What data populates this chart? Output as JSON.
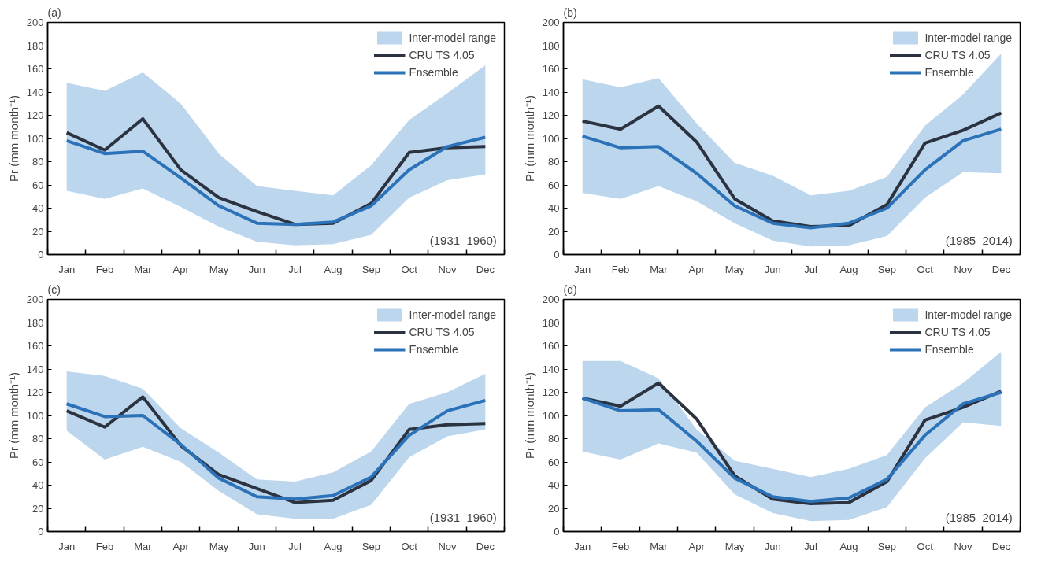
{
  "chart_data": [
    {
      "type": "line",
      "title": "(a)",
      "ylabel": "Pr (mm month⁻¹)",
      "categories": [
        "Jan",
        "Feb",
        "Mar",
        "Apr",
        "May",
        "Jun",
        "Jul",
        "Aug",
        "Sep",
        "Oct",
        "Nov",
        "Dec"
      ],
      "ylim": [
        0,
        200
      ],
      "yticks": [
        0,
        20,
        40,
        60,
        80,
        100,
        120,
        140,
        160,
        180,
        200
      ],
      "grid": false,
      "legend": "top right",
      "annotations": [
        "(1931–1960)"
      ],
      "series": [
        {
          "type": "area",
          "name": "Inter-model range",
          "color": "#bcd6ee",
          "values": [
            null,
            null,
            null,
            null,
            null,
            null,
            null,
            null,
            null,
            null,
            null,
            null
          ]
        },
        {
          "type": "line",
          "name": "CRU TS 4.05",
          "color": "#2c3340",
          "values": [
            105,
            90,
            117,
            73,
            49,
            37,
            26,
            27,
            44,
            88,
            92,
            93
          ]
        },
        {
          "type": "line",
          "name": "Ensemble",
          "color": "#2b72b8",
          "values": [
            98,
            87,
            89,
            66,
            42,
            27,
            26,
            28,
            42,
            73,
            93,
            101
          ],
          "lower": [
            55,
            48,
            57,
            41,
            24,
            11,
            8,
            9,
            17,
            49,
            64,
            69
          ],
          "upper": [
            148,
            141,
            157,
            130,
            87,
            59,
            55,
            51,
            77,
            116,
            139,
            163
          ]
        }
      ]
    },
    {
      "type": "line",
      "title": "(b)",
      "ylabel": "Pr (mm month⁻¹)",
      "categories": [
        "Jan",
        "Feb",
        "Mar",
        "Apr",
        "May",
        "Jun",
        "Jul",
        "Aug",
        "Sep",
        "Oct",
        "Nov",
        "Dec"
      ],
      "ylim": [
        0,
        200
      ],
      "yticks": [
        0,
        20,
        40,
        60,
        80,
        100,
        120,
        140,
        160,
        180,
        200
      ],
      "grid": false,
      "legend": "top right",
      "annotations": [
        "(1985–2014)"
      ],
      "series": [
        {
          "type": "area",
          "name": "Inter-model range",
          "color": "#bcd6ee",
          "values": [
            null,
            null,
            null,
            null,
            null,
            null,
            null,
            null,
            null,
            null,
            null,
            null
          ]
        },
        {
          "type": "line",
          "name": "CRU TS 4.05",
          "color": "#2c3340",
          "values": [
            115,
            108,
            128,
            97,
            48,
            29,
            24,
            25,
            43,
            96,
            107,
            122
          ]
        },
        {
          "type": "line",
          "name": "Ensemble",
          "color": "#2b72b8",
          "values": [
            102,
            92,
            93,
            70,
            42,
            27,
            23,
            27,
            40,
            73,
            98,
            108
          ],
          "lower": [
            53,
            48,
            59,
            46,
            27,
            12,
            7,
            8,
            16,
            49,
            71,
            70
          ],
          "upper": [
            151,
            144,
            152,
            113,
            79,
            68,
            51,
            55,
            67,
            111,
            138,
            173
          ]
        }
      ]
    },
    {
      "type": "line",
      "title": "(c)",
      "ylabel": "Pr (mm month⁻¹)",
      "categories": [
        "Jan",
        "Feb",
        "Mar",
        "Apr",
        "May",
        "Jun",
        "Jul",
        "Aug",
        "Sep",
        "Oct",
        "Nov",
        "Dec"
      ],
      "ylim": [
        0,
        200
      ],
      "yticks": [
        0,
        20,
        40,
        60,
        80,
        100,
        120,
        140,
        160,
        180,
        200
      ],
      "grid": false,
      "legend": "top right",
      "annotations": [
        "(1931–1960)"
      ],
      "series": [
        {
          "type": "area",
          "name": "Inter-model range",
          "color": "#bcd6ee",
          "values": [
            null,
            null,
            null,
            null,
            null,
            null,
            null,
            null,
            null,
            null,
            null,
            null
          ]
        },
        {
          "type": "line",
          "name": "CRU TS 4.05",
          "color": "#2c3340",
          "values": [
            104,
            90,
            116,
            74,
            49,
            37,
            25,
            27,
            44,
            88,
            92,
            93
          ]
        },
        {
          "type": "line",
          "name": "Ensemble",
          "color": "#2b72b8",
          "values": [
            110,
            99,
            100,
            75,
            46,
            30,
            28,
            31,
            47,
            83,
            104,
            113
          ],
          "lower": [
            87,
            62,
            73,
            60,
            35,
            15,
            11,
            11,
            23,
            64,
            82,
            88
          ],
          "upper": [
            138,
            134,
            123,
            89,
            68,
            45,
            43,
            51,
            69,
            110,
            120,
            136
          ]
        }
      ]
    },
    {
      "type": "line",
      "title": "(d)",
      "ylabel": "Pr (mm month⁻¹)",
      "categories": [
        "Jan",
        "Feb",
        "Mar",
        "Apr",
        "May",
        "Jun",
        "Jul",
        "Aug",
        "Sep",
        "Oct",
        "Nov",
        "Dec"
      ],
      "ylim": [
        0,
        200
      ],
      "yticks": [
        0,
        20,
        40,
        60,
        80,
        100,
        120,
        140,
        160,
        180,
        200
      ],
      "grid": false,
      "legend": "top right",
      "annotations": [
        "(1985–2014)"
      ],
      "series": [
        {
          "type": "area",
          "name": "Inter-model range",
          "color": "#bcd6ee",
          "values": [
            null,
            null,
            null,
            null,
            null,
            null,
            null,
            null,
            null,
            null,
            null,
            null
          ]
        },
        {
          "type": "line",
          "name": "CRU TS 4.05",
          "color": "#2c3340",
          "values": [
            115,
            108,
            128,
            97,
            48,
            28,
            24,
            25,
            43,
            96,
            107,
            121
          ]
        },
        {
          "type": "line",
          "name": "Ensemble",
          "color": "#2b72b8",
          "values": [
            115,
            104,
            105,
            78,
            46,
            30,
            26,
            29,
            45,
            83,
            110,
            120
          ],
          "lower": [
            69,
            62,
            76,
            68,
            32,
            16,
            9,
            10,
            21,
            63,
            94,
            91
          ],
          "upper": [
            147,
            147,
            132,
            88,
            61,
            54,
            47,
            54,
            66,
            107,
            128,
            155
          ]
        }
      ]
    }
  ]
}
